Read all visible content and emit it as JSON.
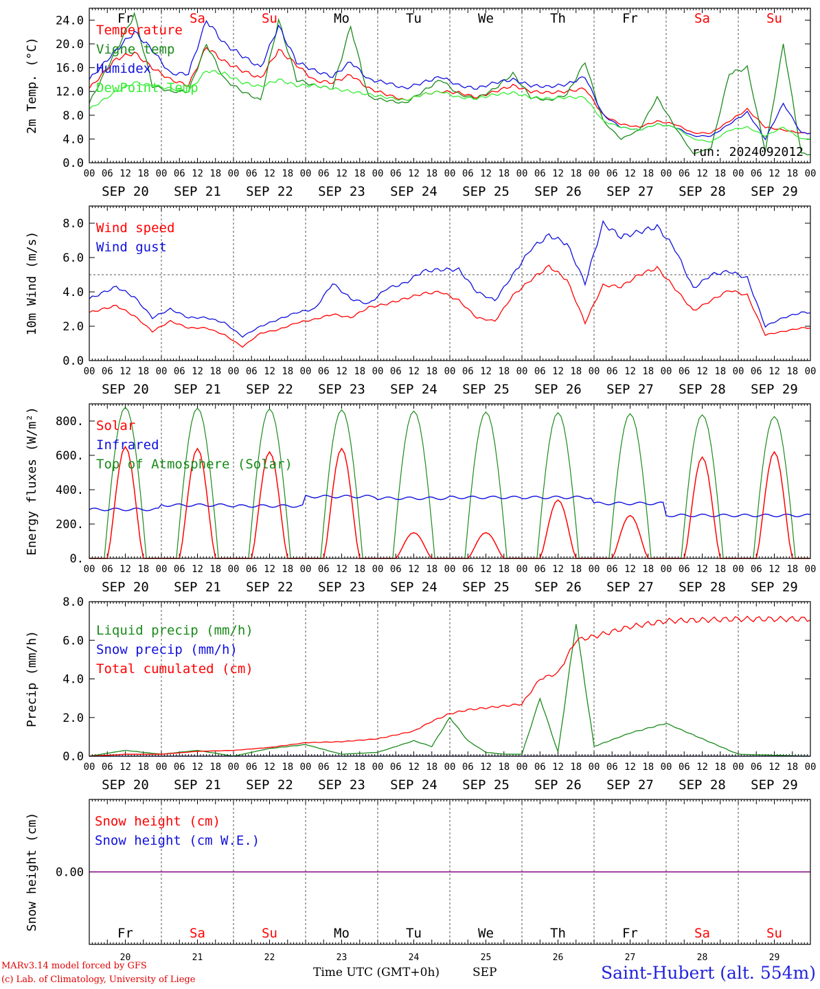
{
  "chart_data": [
    {
      "type": "line",
      "ylabel": "2m Temp. (°C)",
      "ylim": [
        0,
        26
      ],
      "yticks": [
        "0.0",
        "4.0",
        "8.0",
        "12.0",
        "16.0",
        "20.0",
        "24.0"
      ],
      "run_label": "run: 2024092012",
      "legend": "upper-left",
      "x_hours": [
        0,
        9,
        15,
        21,
        27,
        33,
        39,
        45,
        51,
        57,
        63,
        69,
        75,
        81,
        87,
        93,
        99,
        105,
        111,
        117,
        123,
        129,
        135,
        141,
        147,
        153,
        159,
        165,
        171,
        177,
        183,
        189,
        195,
        201,
        207,
        213,
        219,
        225,
        231,
        237
      ],
      "series": [
        {
          "name": "Temperature",
          "color": "#ff0000",
          "values": [
            12.5,
            17.5,
            18.5,
            16,
            14,
            13,
            19.5,
            17,
            15.5,
            14.2,
            19,
            16.5,
            13.8,
            13.5,
            14.8,
            12.5,
            11.5,
            10.5,
            11.5,
            12,
            11.8,
            11,
            12,
            13,
            12,
            11.8,
            12,
            12.5,
            8,
            6.5,
            6,
            7,
            6.5,
            5,
            5,
            7,
            9,
            6,
            5.5,
            5
          ]
        },
        {
          "name": "Vigne temp",
          "color": "#1a8a1a",
          "values": [
            10,
            19,
            25,
            13,
            12,
            12,
            20,
            14,
            12,
            10.5,
            24,
            14,
            13,
            12.5,
            23,
            11,
            10.5,
            10,
            12,
            14,
            11.5,
            10.8,
            12.5,
            15,
            11,
            10.5,
            11.5,
            17,
            7,
            4,
            5.5,
            11,
            6,
            1.5,
            2.5,
            15,
            16,
            2,
            20,
            1.5
          ]
        },
        {
          "name": "Humidex",
          "color": "#1010dd",
          "values": [
            14,
            19,
            22,
            19,
            15,
            15,
            24,
            20,
            18,
            16,
            23,
            17,
            15.5,
            14.5,
            17,
            14,
            13.5,
            12.5,
            13.5,
            14.5,
            13,
            12.5,
            13.5,
            14,
            13,
            12.8,
            13.2,
            14.5,
            8,
            6,
            5.5,
            6.5,
            6,
            4.5,
            4.5,
            6.5,
            8.5,
            4,
            10,
            5
          ]
        },
        {
          "name": "DewPoint Temp",
          "color": "#33ee33",
          "values": [
            9,
            12,
            13.5,
            13,
            12.5,
            12,
            15.5,
            15,
            13.5,
            12.8,
            14,
            13,
            13,
            12.5,
            12,
            11.5,
            11,
            10.5,
            11.5,
            12,
            11,
            10.8,
            11.5,
            11.8,
            11,
            10.8,
            11,
            11,
            7,
            6,
            5.5,
            6.5,
            6,
            4,
            3.5,
            5.5,
            6,
            4.5,
            6,
            4
          ]
        }
      ]
    },
    {
      "type": "line",
      "ylabel": "10m Wind (m/s)",
      "ylim": [
        0,
        9
      ],
      "yticks": [
        "0.0",
        "2.0",
        "4.0",
        "6.0",
        "8.0"
      ],
      "reference_line": 5,
      "legend": "upper-left",
      "x_hours": [
        0,
        9,
        15,
        21,
        27,
        33,
        39,
        45,
        51,
        57,
        63,
        69,
        75,
        81,
        87,
        93,
        99,
        105,
        111,
        117,
        123,
        129,
        135,
        141,
        147,
        153,
        159,
        165,
        171,
        177,
        183,
        189,
        195,
        201,
        207,
        213,
        219,
        225,
        231,
        237
      ],
      "series": [
        {
          "name": "Wind speed",
          "color": "#ff0000",
          "values": [
            2.8,
            3.2,
            2.6,
            1.7,
            2.3,
            1.9,
            1.9,
            1.5,
            0.8,
            1.6,
            1.8,
            2.2,
            2.4,
            2.7,
            2.5,
            3.1,
            3.3,
            3.6,
            3.9,
            4.0,
            3.5,
            2.5,
            2.3,
            3.8,
            4.7,
            5.5,
            4.7,
            2.2,
            4.4,
            4.3,
            5.0,
            5.4,
            4.2,
            2.9,
            3.5,
            4.1,
            3.8,
            1.5,
            1.7,
            1.9
          ]
        },
        {
          "name": "Wind gust",
          "color": "#1010dd",
          "values": [
            3.6,
            4.3,
            3.7,
            2.5,
            3.0,
            2.5,
            2.5,
            2.2,
            1.4,
            2.0,
            2.4,
            2.8,
            3.0,
            4.5,
            3.6,
            3.3,
            4.2,
            4.5,
            5.2,
            5.3,
            5.3,
            4.0,
            3.5,
            5.0,
            6.5,
            7.3,
            6.8,
            4.5,
            8.0,
            7.2,
            7.5,
            7.8,
            6.5,
            4.2,
            5.0,
            5.2,
            4.8,
            2.0,
            2.5,
            2.8
          ]
        }
      ]
    },
    {
      "type": "line",
      "ylabel": "Energy fluxes (W/m²)",
      "ylim": [
        0,
        900
      ],
      "yticks": [
        "0.",
        "200.",
        "400.",
        "600.",
        "800."
      ],
      "legend": "upper-left",
      "solar_peaks": [
        650,
        640,
        620,
        640,
        150,
        150,
        340,
        250,
        590,
        620
      ],
      "toa_peaks": [
        880,
        875,
        870,
        865,
        858,
        852,
        848,
        842,
        836,
        826
      ],
      "infrared_daily": [
        285,
        310,
        305,
        360,
        350,
        355,
        355,
        320,
        250,
        250
      ],
      "series": [
        {
          "name": "Solar",
          "color": "#ff0000"
        },
        {
          "name": "Infrared",
          "color": "#1010dd"
        },
        {
          "name": "Top of Atmosphere (Solar)",
          "color": "#1a8a1a"
        }
      ]
    },
    {
      "type": "line",
      "ylabel": "Precip (mm/h)",
      "ylim": [
        0,
        8
      ],
      "yticks": [
        "0.0",
        "2.0",
        "4.0",
        "6.0",
        "8.0"
      ],
      "legend": "upper-left",
      "x_hours": [
        0,
        12,
        24,
        36,
        48,
        60,
        72,
        84,
        96,
        108,
        114,
        120,
        126,
        132,
        138,
        144,
        150,
        156,
        162,
        168,
        180,
        192,
        216,
        240
      ],
      "series": [
        {
          "name": "Liquid precip (mm/h)",
          "color": "#1a8a1a",
          "values": [
            0,
            0.3,
            0.1,
            0.3,
            0,
            0.4,
            0.6,
            0.1,
            0.2,
            0.8,
            0.5,
            2.0,
            0.8,
            0.2,
            0.1,
            0.1,
            3.0,
            0.2,
            6.9,
            0.5,
            1.2,
            1.7,
            0.1,
            0
          ]
        },
        {
          "name": "Snow precip (mm/h)",
          "color": "#1010dd",
          "values": [
            0,
            0,
            0,
            0,
            0,
            0,
            0,
            0,
            0,
            0,
            0,
            0,
            0,
            0,
            0,
            0,
            0,
            0,
            0,
            0,
            0,
            0,
            0,
            0
          ]
        },
        {
          "name": "Total cumulated (cm)",
          "color": "#ff0000",
          "values": [
            0,
            0.1,
            0.1,
            0.25,
            0.3,
            0.45,
            0.7,
            0.75,
            0.9,
            1.3,
            1.8,
            2.2,
            2.4,
            2.5,
            2.6,
            2.7,
            4.0,
            4.3,
            6.0,
            6.2,
            6.7,
            7.0,
            7.1,
            7.1
          ]
        }
      ]
    },
    {
      "type": "line",
      "ylabel": "Snow height (cm)",
      "ylim": [
        -1,
        1
      ],
      "yticks": [
        "0.00"
      ],
      "legend": "upper-left",
      "series": [
        {
          "name": "Snow height (cm)",
          "color": "#ff0000"
        },
        {
          "name": "Snow height (cm W.E.)",
          "color": "#1010dd"
        }
      ]
    }
  ],
  "x_axis": {
    "hour_ticks": [
      "00",
      "06",
      "12",
      "18"
    ],
    "dates": [
      "SEP 20",
      "SEP 21",
      "SEP 22",
      "SEP 23",
      "SEP 24",
      "SEP 25",
      "SEP 26",
      "SEP 27",
      "SEP 28",
      "SEP 29"
    ],
    "weekdays": [
      {
        "label": "Fr",
        "color": "#000000"
      },
      {
        "label": "Sa",
        "color": "#ff0000"
      },
      {
        "label": "Su",
        "color": "#ff0000"
      },
      {
        "label": "Mo",
        "color": "#000000"
      },
      {
        "label": "Tu",
        "color": "#000000"
      },
      {
        "label": "We",
        "color": "#000000"
      },
      {
        "label": "Th",
        "color": "#000000"
      },
      {
        "label": "Fr",
        "color": "#000000"
      },
      {
        "label": "Sa",
        "color": "#ff0000"
      },
      {
        "label": "Su",
        "color": "#ff0000"
      }
    ],
    "day_numbers": [
      "20",
      "21",
      "22",
      "23",
      "24",
      "25",
      "26",
      "27",
      "28",
      "29"
    ],
    "bottom_label": "Time UTC (GMT+0h)",
    "month_label": "SEP"
  },
  "footer": {
    "credit_line1": "MARv3.14 model forced by GFS",
    "credit_line2": "(c) Lab. of Climatology, University of Liege",
    "station": "Saint-Hubert (alt. 554m)"
  }
}
